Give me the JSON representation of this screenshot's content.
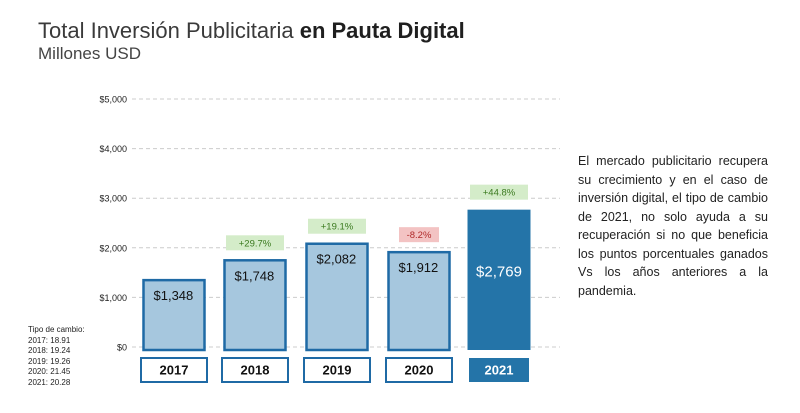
{
  "header": {
    "title_regular": "Total Inversión Publicitaria",
    "title_bold": "en Pauta Digital",
    "subtitle": "Millones USD"
  },
  "chart_data": {
    "type": "bar",
    "title": "Total Inversión Publicitaria en Pauta Digital",
    "subtitle": "Millones USD",
    "categories": [
      "2017",
      "2018",
      "2019",
      "2020",
      "2021"
    ],
    "values": [
      1348,
      1748,
      2082,
      1912,
      2769
    ],
    "value_labels": [
      "$1,348",
      "$1,748",
      "$2,082",
      "$1,912",
      "$2,769"
    ],
    "changes": [
      null,
      "+29.7%",
      "+19.1%",
      "-8.2%",
      "+44.8%"
    ],
    "ylim": [
      0,
      5000
    ],
    "yticks": [
      0,
      1000,
      2000,
      3000,
      4000,
      5000
    ],
    "ytick_labels": [
      "$0",
      "$1,000",
      "$2,000",
      "$3,000",
      "$4,000",
      "$5,000"
    ],
    "grid": true,
    "colors": {
      "bar_fill": "#a6c7de",
      "bar_border": "#1f6aa5",
      "highlight_fill": "#2474a8",
      "positive_bg": "#d4ecc9",
      "positive_text": "#3b7a1f",
      "negative_bg": "#f3c3c3",
      "negative_text": "#b02a2a",
      "grid": "#cccccc"
    }
  },
  "exchange_note": {
    "heading": "Tipo de cambio:",
    "lines": [
      "2017: 18.91",
      "2018: 19.24",
      "2019: 19.26",
      "2020: 21.45",
      "2021: 20.28"
    ]
  },
  "side_text": "El mercado publicitario recupera su crecimiento y en el caso de inversión digital, el tipo de cambio de 2021, no solo ayuda a su recuperación si no que beneficia los puntos porcentuales ganados Vs los años anteriores a la pandemia."
}
